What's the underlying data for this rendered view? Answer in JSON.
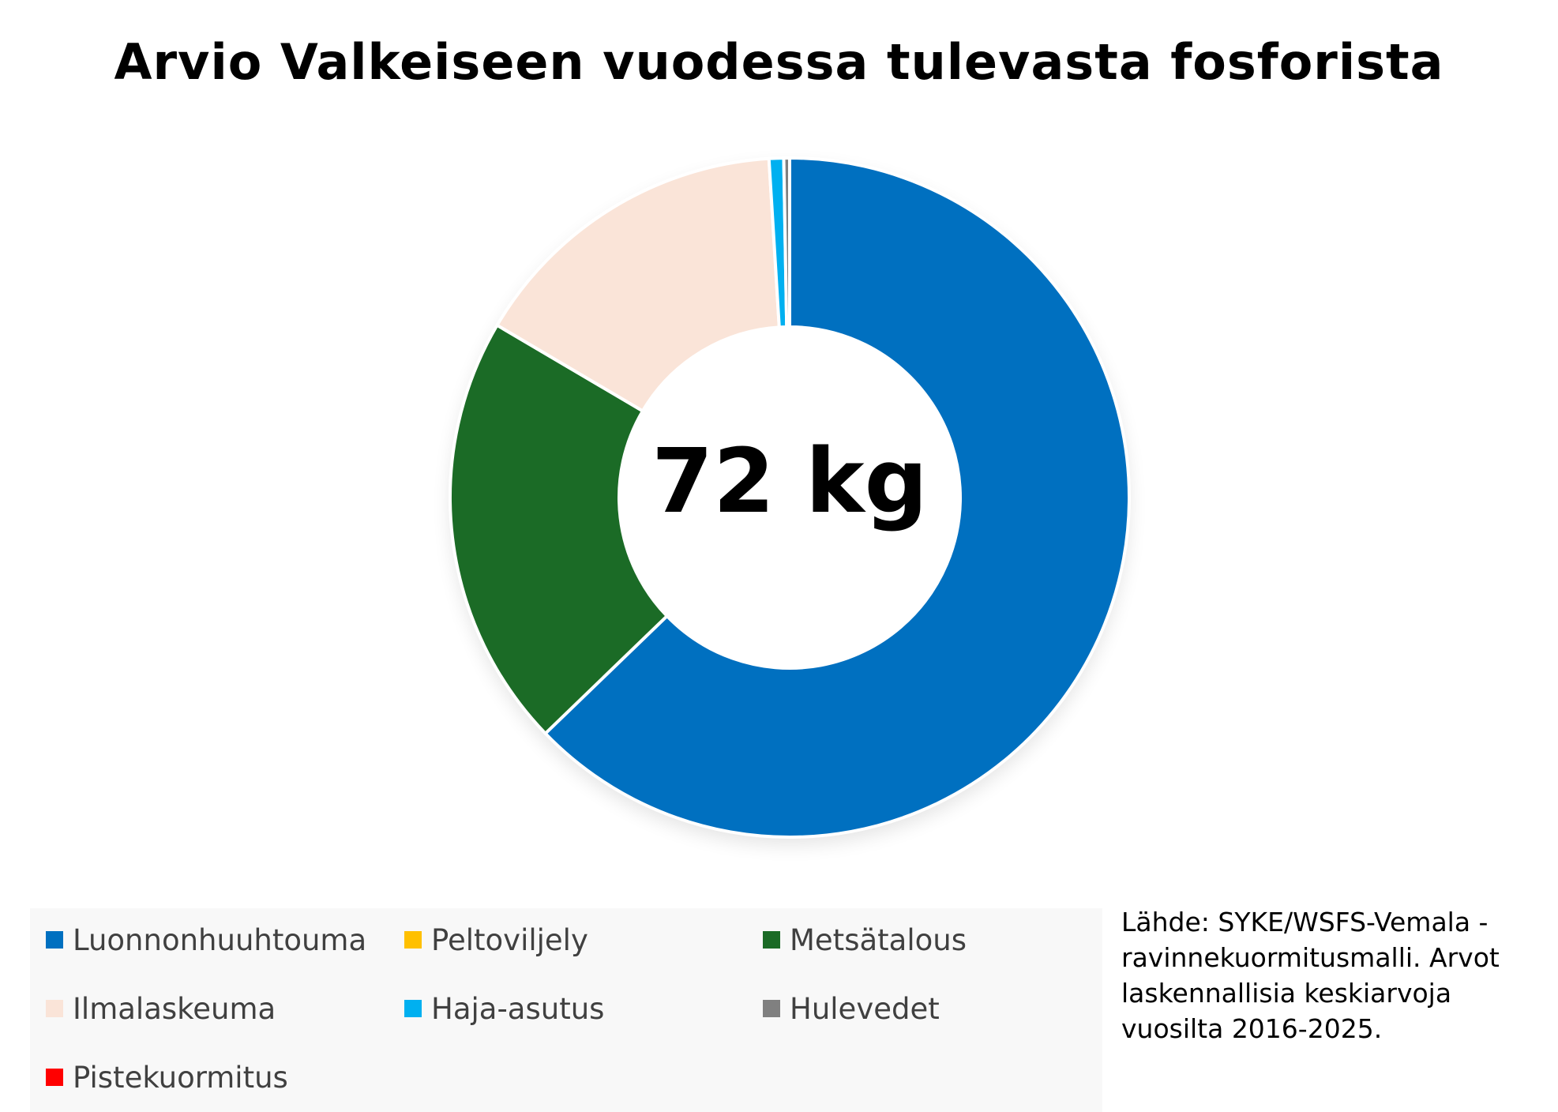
{
  "chart_data": {
    "type": "pie",
    "title": "Arvio Valkeiseen vuodessa tulevasta fosforista",
    "center_label": "72 kg",
    "donut": true,
    "legend_position": "bottom",
    "categories": [
      "Luonnonhuuhtouma",
      "Peltoviljely",
      "Metsätalous",
      "Ilmalaskeuma",
      "Haja-asutus",
      "Hulevedet",
      "Pistekuormitus"
    ],
    "values": [
      45.2,
      0,
      14.9,
      11.2,
      0.5,
      0.2,
      0
    ],
    "colors": [
      "#0070c0",
      "#ffc000",
      "#1b6b26",
      "#fae4d8",
      "#00b0f0",
      "#808080",
      "#ff0000"
    ]
  },
  "source_note": "Lähde: SYKE/WSFS-Vemala -ravinnekuormitusmalli. Arvot laskennallisia keskiarvoja vuosilta 2016-2025."
}
